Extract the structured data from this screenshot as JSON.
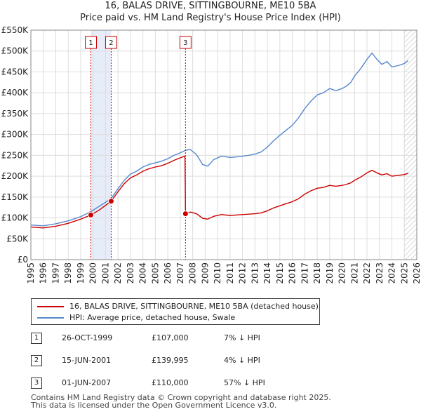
{
  "title_line1": "16, BALAS DRIVE, SITTINGBOURNE, ME10 5BA",
  "title_line2": "Price paid vs. HM Land Registry's House Price Index (HPI)",
  "legend": [
    {
      "label": "16, BALAS DRIVE, SITTINGBOURNE, ME10 5BA (detached house)",
      "color": "#cc0000"
    },
    {
      "label": "HPI: Average price, detached house, Swale",
      "color": "#5588cc"
    }
  ],
  "transactions": [
    {
      "num": "1",
      "date": "26-OCT-1999",
      "price": "£107,000",
      "hpi": "7% ↓ HPI"
    },
    {
      "num": "2",
      "date": "15-JUN-2001",
      "price": "£139,995",
      "hpi": "4% ↓ HPI"
    },
    {
      "num": "3",
      "date": "01-JUN-2007",
      "price": "£110,000",
      "hpi": "57% ↓ HPI"
    }
  ],
  "footer_line1": "Contains HM Land Registry data © Crown copyright and database right 2025.",
  "footer_line2": "This data is licensed under the Open Government Licence v3.0.",
  "chart_data": {
    "type": "line",
    "title": "Price paid vs. HM Land Registry's House Price Index (HPI)",
    "xlim": [
      1995,
      2026
    ],
    "ylim": [
      0,
      550000
    ],
    "y_ticks": [
      0,
      50000,
      100000,
      150000,
      200000,
      250000,
      300000,
      350000,
      400000,
      450000,
      500000,
      550000
    ],
    "y_tick_labels": [
      "£0",
      "£50K",
      "£100K",
      "£150K",
      "£200K",
      "£250K",
      "£300K",
      "£350K",
      "£400K",
      "£450K",
      "£500K",
      "£550K"
    ],
    "x_ticks": [
      1995,
      1996,
      1997,
      1998,
      1999,
      2000,
      2001,
      2002,
      2003,
      2004,
      2005,
      2006,
      2007,
      2008,
      2009,
      2010,
      2011,
      2012,
      2013,
      2014,
      2015,
      2016,
      2017,
      2018,
      2019,
      2020,
      2021,
      2022,
      2023,
      2024,
      2025,
      2026
    ],
    "x_tick_labels": [
      "1995",
      "1996",
      "1997",
      "1998",
      "1999",
      "2000",
      "2001",
      "2002",
      "2003",
      "2004",
      "2005",
      "2006",
      "2007",
      "2008",
      "2009",
      "2010",
      "2011",
      "2012",
      "2013",
      "2014",
      "2015",
      "2016",
      "2017",
      "2018",
      "2019",
      "2020",
      "2021",
      "2022",
      "2023",
      "2024",
      "2025",
      "2026"
    ],
    "grid": true,
    "highlight_ranges": [
      [
        1999.82,
        2001.45
      ]
    ],
    "future_after": 2025.0,
    "sale_markers": [
      {
        "label": "1",
        "x": 1999.82,
        "y": 107000
      },
      {
        "label": "2",
        "x": 2001.45,
        "y": 139995
      },
      {
        "label": "3",
        "x": 2007.42,
        "y": 110000
      }
    ],
    "series": [
      {
        "name": "HPI: Average price, detached house, Swale",
        "color": "#5588cc",
        "x": [
          1995,
          1996,
          1997,
          1998,
          1999,
          1999.82,
          2000.5,
          2001.45,
          2002,
          2002.5,
          2003,
          2003.5,
          2004,
          2004.5,
          2005,
          2005.5,
          2006,
          2006.5,
          2007,
          2007.42,
          2007.8,
          2008.3,
          2008.8,
          2009.2,
          2009.7,
          2010.3,
          2011,
          2011.5,
          2012,
          2012.5,
          2013,
          2013.5,
          2014,
          2014.5,
          2015,
          2015.5,
          2016,
          2016.5,
          2017,
          2017.5,
          2018,
          2018.5,
          2019,
          2019.5,
          2020,
          2020.3,
          2020.7,
          2021,
          2021.5,
          2022,
          2022.4,
          2022.8,
          2023.2,
          2023.6,
          2024,
          2024.5,
          2025,
          2025.3
        ],
        "values": [
          83000,
          81000,
          86000,
          93000,
          103000,
          115000,
          128000,
          146000,
          170000,
          190000,
          205000,
          212000,
          222000,
          228000,
          232000,
          236000,
          242000,
          250000,
          256000,
          262000,
          264000,
          252000,
          228000,
          224000,
          240000,
          248000,
          245000,
          246000,
          248000,
          250000,
          253000,
          258000,
          270000,
          285000,
          298000,
          310000,
          322000,
          340000,
          362000,
          380000,
          395000,
          400000,
          410000,
          405000,
          410000,
          415000,
          425000,
          440000,
          458000,
          480000,
          495000,
          480000,
          468000,
          475000,
          462000,
          465000,
          470000,
          477000
        ]
      },
      {
        "name": "16, BALAS DRIVE, SITTINGBOURNE, ME10 5BA (detached house)",
        "color": "#cc0000",
        "x": [
          1995,
          1996,
          1997,
          1998,
          1999,
          1999.82,
          2000.5,
          2001.45,
          2002,
          2002.5,
          2003,
          2003.5,
          2004,
          2004.5,
          2005,
          2005.5,
          2006,
          2006.5,
          2007,
          2007.38,
          2007.42,
          2007.8,
          2008.3,
          2008.8,
          2009.2,
          2009.7,
          2010.3,
          2011,
          2011.5,
          2012,
          2012.5,
          2013,
          2013.5,
          2014,
          2014.5,
          2015,
          2015.5,
          2016,
          2016.5,
          2017,
          2017.5,
          2018,
          2018.5,
          2019,
          2019.5,
          2020,
          2020.3,
          2020.7,
          2021,
          2021.5,
          2022,
          2022.4,
          2022.8,
          2023.2,
          2023.6,
          2024,
          2024.5,
          2025,
          2025.3
        ],
        "values": [
          78000,
          76000,
          80000,
          87000,
          97000,
          107000,
          119000,
          139995,
          163000,
          182000,
          196000,
          203000,
          212000,
          218000,
          222000,
          225000,
          231000,
          238000,
          244000,
          248000,
          110000,
          114000,
          110000,
          99000,
          97000,
          104000,
          108000,
          106000,
          107000,
          108000,
          109000,
          110000,
          112000,
          117000,
          124000,
          129000,
          134000,
          139000,
          146000,
          157000,
          165000,
          171000,
          173000,
          178000,
          176000,
          178000,
          180000,
          184000,
          190000,
          198000,
          208000,
          214000,
          208000,
          203000,
          206000,
          200000,
          202000,
          204000,
          207000
        ]
      }
    ]
  }
}
